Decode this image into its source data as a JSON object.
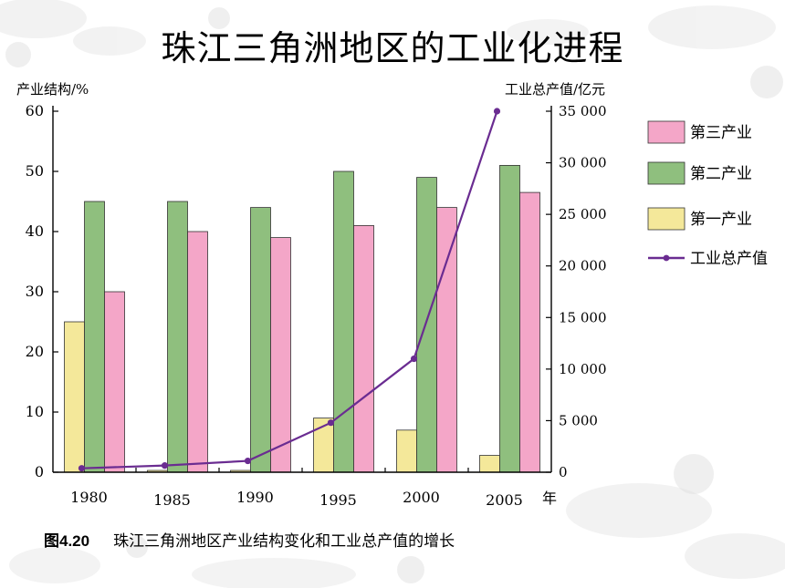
{
  "slide": {
    "title": "珠江三角洲地区的工业化进程",
    "caption_number": "图4.20",
    "caption_text": "珠江三角洲地区产业结构变化和工业总产值的增长"
  },
  "colors": {
    "tertiary": "#f4a6c8",
    "secondary": "#8fbf7e",
    "primary": "#f4e89a",
    "line": "#6a2c91",
    "axis": "#000000"
  },
  "chart_data": {
    "type": "bar",
    "categories": [
      "1980",
      "1985",
      "1990",
      "1995",
      "2000",
      "2005"
    ],
    "x_unit_label": "年",
    "ylabel_left": "产业结构/%",
    "ylabel_right": "工业总产值/亿元",
    "ylim_left": [
      0,
      60
    ],
    "ylim_right": [
      0,
      35000
    ],
    "left_ticks": [
      "0",
      "10",
      "20",
      "30",
      "40",
      "50",
      "60"
    ],
    "right_ticks": [
      "0",
      "5 000",
      "10 000",
      "15 000",
      "20 000",
      "25 000",
      "30 000",
      "35 000"
    ],
    "series": [
      {
        "name": "第一产业",
        "axis": "left",
        "kind": "bar",
        "values": [
          25,
          0.3,
          0.3,
          9,
          7,
          2.8
        ]
      },
      {
        "name": "第二产业",
        "axis": "left",
        "kind": "bar",
        "values": [
          45,
          45,
          44,
          50,
          49,
          51
        ]
      },
      {
        "name": "第三产业",
        "axis": "left",
        "kind": "bar",
        "values": [
          30,
          40,
          39,
          41,
          44,
          46.5
        ]
      },
      {
        "name": "工业总产值",
        "axis": "right",
        "kind": "line",
        "values": [
          380,
          650,
          1100,
          4800,
          11000,
          35000
        ]
      }
    ],
    "legend": {
      "placement": "right",
      "items": [
        {
          "label": "第三产业",
          "kind": "bar",
          "series": "第三产业"
        },
        {
          "label": "第二产业",
          "kind": "bar",
          "series": "第二产业"
        },
        {
          "label": "第一产业",
          "kind": "bar",
          "series": "第一产业"
        },
        {
          "label": "工业总产值",
          "kind": "line",
          "series": "工业总产值"
        }
      ]
    }
  }
}
